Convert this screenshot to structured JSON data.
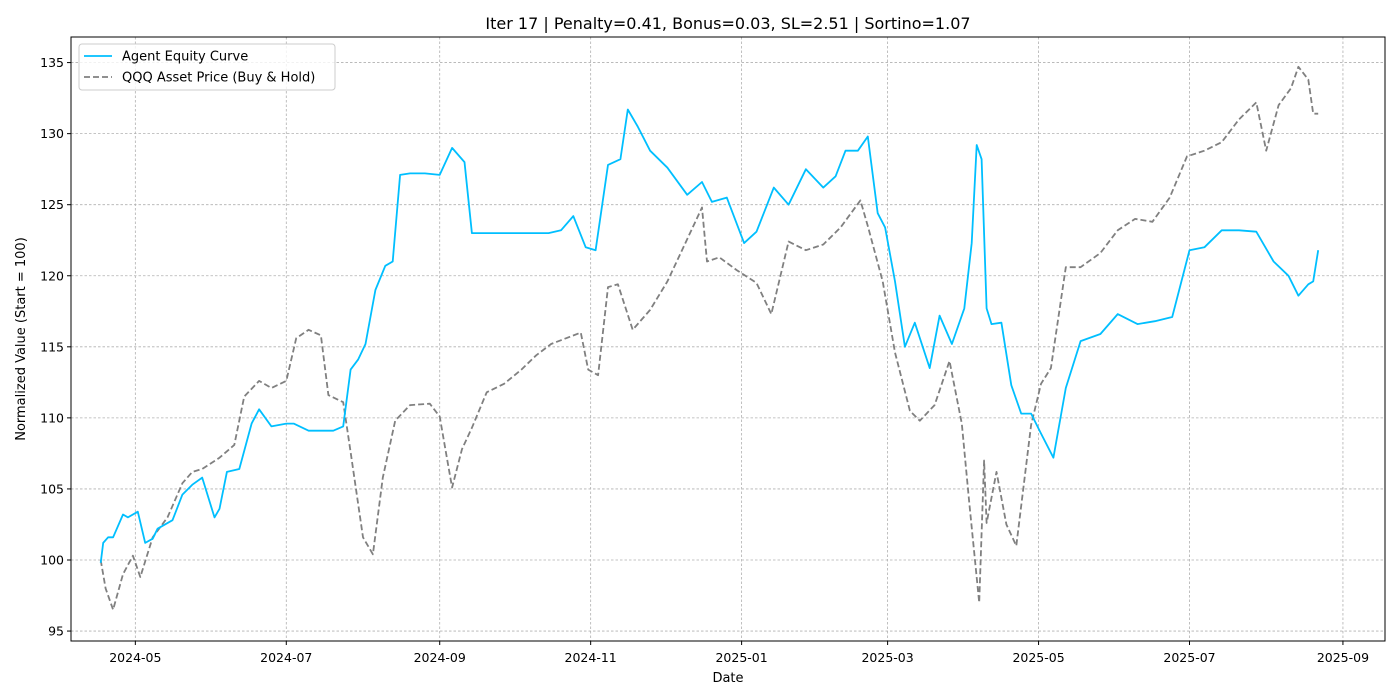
{
  "chart_data": {
    "type": "line",
    "title": "Iter 17 | Penalty=0.41, Bonus=0.03, SL=2.51 | Sortino=1.07",
    "xlabel": "Date",
    "ylabel": "Normalized Value (Start = 100)",
    "x_tick_labels": [
      "2024-05",
      "2024-07",
      "2024-09",
      "2024-11",
      "2025-01",
      "2025-03",
      "2025-05",
      "2025-07",
      "2025-09"
    ],
    "x_ticks": [
      "2024-05-01",
      "2024-07-01",
      "2024-09-01",
      "2024-11-01",
      "2025-01-01",
      "2025-03-01",
      "2025-05-01",
      "2025-07-01",
      "2025-09-01"
    ],
    "xlim": [
      "2024-04-05",
      "2025-09-18"
    ],
    "y_ticks": [
      95,
      100,
      105,
      110,
      115,
      120,
      125,
      130,
      135
    ],
    "ylim": [
      94.3,
      136.8
    ],
    "grid": true,
    "legend_position": "upper left",
    "series": [
      {
        "name": "Agent Equity Curve",
        "color": "#00bfff",
        "dash": "solid",
        "x": [
          "2024-04-17",
          "2024-04-18",
          "2024-04-20",
          "2024-04-22",
          "2024-04-26",
          "2024-04-28",
          "2024-05-02",
          "2024-05-05",
          "2024-05-08",
          "2024-05-10",
          "2024-05-16",
          "2024-05-20",
          "2024-05-24",
          "2024-05-28",
          "2024-06-02",
          "2024-06-04",
          "2024-06-07",
          "2024-06-12",
          "2024-06-17",
          "2024-06-20",
          "2024-06-25",
          "2024-07-01",
          "2024-07-04",
          "2024-07-10",
          "2024-07-15",
          "2024-07-20",
          "2024-07-24",
          "2024-07-27",
          "2024-07-30",
          "2024-08-02",
          "2024-08-06",
          "2024-08-10",
          "2024-08-13",
          "2024-08-16",
          "2024-08-20",
          "2024-08-26",
          "2024-09-01",
          "2024-09-06",
          "2024-09-11",
          "2024-09-14",
          "2024-09-18",
          "2024-10-01",
          "2024-10-15",
          "2024-10-20",
          "2024-10-25",
          "2024-10-30",
          "2024-11-03",
          "2024-11-08",
          "2024-11-13",
          "2024-11-16",
          "2024-11-20",
          "2024-11-25",
          "2024-12-02",
          "2024-12-10",
          "2024-12-16",
          "2024-12-20",
          "2024-12-26",
          "2025-01-02",
          "2025-01-07",
          "2025-01-14",
          "2025-01-20",
          "2025-01-27",
          "2025-02-03",
          "2025-02-08",
          "2025-02-12",
          "2025-02-17",
          "2025-02-21",
          "2025-02-25",
          "2025-02-28",
          "2025-03-04",
          "2025-03-08",
          "2025-03-12",
          "2025-03-18",
          "2025-03-22",
          "2025-03-27",
          "2025-04-01",
          "2025-04-04",
          "2025-04-06",
          "2025-04-08",
          "2025-04-10",
          "2025-04-12",
          "2025-04-16",
          "2025-04-20",
          "2025-04-24",
          "2025-04-28",
          "2025-05-02",
          "2025-05-07",
          "2025-05-12",
          "2025-05-18",
          "2025-05-26",
          "2025-06-02",
          "2025-06-10",
          "2025-06-17",
          "2025-06-24",
          "2025-07-01",
          "2025-07-07",
          "2025-07-14",
          "2025-07-21",
          "2025-07-28",
          "2025-08-04",
          "2025-08-10",
          "2025-08-14",
          "2025-08-18",
          "2025-08-20",
          "2025-08-22"
        ],
        "y": [
          99.8,
          101.2,
          101.6,
          101.6,
          103.2,
          103.0,
          103.4,
          101.2,
          101.5,
          102.2,
          102.8,
          104.6,
          105.3,
          105.8,
          103.0,
          103.6,
          106.2,
          106.4,
          109.6,
          110.6,
          109.4,
          109.6,
          109.6,
          109.1,
          109.1,
          109.1,
          109.4,
          113.4,
          114.1,
          115.2,
          119.0,
          120.7,
          121.0,
          127.1,
          127.2,
          127.2,
          127.1,
          129.0,
          128.0,
          123.0,
          123.0,
          123.0,
          123.0,
          123.2,
          124.2,
          122.0,
          121.8,
          127.8,
          128.2,
          131.7,
          130.5,
          128.8,
          127.6,
          125.7,
          126.6,
          125.2,
          125.5,
          122.3,
          123.1,
          126.2,
          125.0,
          127.5,
          126.2,
          127.0,
          128.8,
          128.8,
          129.8,
          124.4,
          123.4,
          119.6,
          115.0,
          116.7,
          113.5,
          117.2,
          115.2,
          117.7,
          122.3,
          129.2,
          128.2,
          117.7,
          116.6,
          116.7,
          112.3,
          110.3,
          110.3,
          108.9,
          107.2,
          112.1,
          115.4,
          115.9,
          117.3,
          116.6,
          116.8,
          117.1,
          121.8,
          122.0,
          123.2,
          123.2,
          123.1,
          121.0,
          120.0,
          118.6,
          119.4,
          119.6,
          121.8
        ]
      },
      {
        "name": "QQQ Asset Price (Buy & Hold)",
        "color": "#808080",
        "dash": "dashed",
        "x": [
          "2024-04-17",
          "2024-04-19",
          "2024-04-22",
          "2024-04-26",
          "2024-04-30",
          "2024-05-03",
          "2024-05-08",
          "2024-05-14",
          "2024-05-20",
          "2024-05-24",
          "2024-05-28",
          "2024-06-04",
          "2024-06-10",
          "2024-06-14",
          "2024-06-20",
          "2024-06-25",
          "2024-07-01",
          "2024-07-05",
          "2024-07-10",
          "2024-07-15",
          "2024-07-18",
          "2024-07-24",
          "2024-07-27",
          "2024-08-01",
          "2024-08-05",
          "2024-08-09",
          "2024-08-14",
          "2024-08-20",
          "2024-08-28",
          "2024-09-01",
          "2024-09-04",
          "2024-09-06",
          "2024-09-10",
          "2024-09-14",
          "2024-09-20",
          "2024-09-27",
          "2024-10-04",
          "2024-10-10",
          "2024-10-16",
          "2024-10-22",
          "2024-10-28",
          "2024-10-31",
          "2024-11-04",
          "2024-11-08",
          "2024-11-12",
          "2024-11-18",
          "2024-11-25",
          "2024-12-02",
          "2024-12-09",
          "2024-12-16",
          "2024-12-18",
          "2024-12-23",
          "2024-12-30",
          "2025-01-07",
          "2025-01-13",
          "2025-01-20",
          "2025-01-27",
          "2025-02-03",
          "2025-02-10",
          "2025-02-18",
          "2025-02-21",
          "2025-02-27",
          "2025-03-04",
          "2025-03-10",
          "2025-03-14",
          "2025-03-20",
          "2025-03-26",
          "2025-03-31",
          "2025-04-03",
          "2025-04-07",
          "2025-04-09",
          "2025-04-10",
          "2025-04-14",
          "2025-04-18",
          "2025-04-22",
          "2025-04-28",
          "2025-05-02",
          "2025-05-06",
          "2025-05-12",
          "2025-05-18",
          "2025-05-26",
          "2025-06-02",
          "2025-06-09",
          "2025-06-16",
          "2025-06-23",
          "2025-06-30",
          "2025-07-07",
          "2025-07-14",
          "2025-07-21",
          "2025-07-28",
          "2025-08-01",
          "2025-08-06",
          "2025-08-11",
          "2025-08-14",
          "2025-08-18",
          "2025-08-20",
          "2025-08-22"
        ],
        "y": [
          100.0,
          98.0,
          96.5,
          99.0,
          100.3,
          98.8,
          101.6,
          103.0,
          105.4,
          106.2,
          106.4,
          107.2,
          108.1,
          111.5,
          112.6,
          112.1,
          112.6,
          115.6,
          116.2,
          115.8,
          111.6,
          111.1,
          107.6,
          101.6,
          100.4,
          105.8,
          109.8,
          110.9,
          111.0,
          110.1,
          107.1,
          105.1,
          107.8,
          109.3,
          111.8,
          112.4,
          113.4,
          114.4,
          115.2,
          115.6,
          116.0,
          113.4,
          113.0,
          119.2,
          119.4,
          116.2,
          117.6,
          119.6,
          122.2,
          124.8,
          121.0,
          121.3,
          120.4,
          119.5,
          117.3,
          122.4,
          121.8,
          122.2,
          123.4,
          125.3,
          123.5,
          119.6,
          114.6,
          110.5,
          109.8,
          110.9,
          114.0,
          109.6,
          104.0,
          97.0,
          107.0,
          102.6,
          106.2,
          102.5,
          101.0,
          109.5,
          112.4,
          113.5,
          120.6,
          120.6,
          121.6,
          123.2,
          124.0,
          123.8,
          125.5,
          128.4,
          128.8,
          129.4,
          131.0,
          132.2,
          128.8,
          132.0,
          133.2,
          134.7,
          133.8,
          131.4,
          131.4
        ]
      }
    ]
  }
}
